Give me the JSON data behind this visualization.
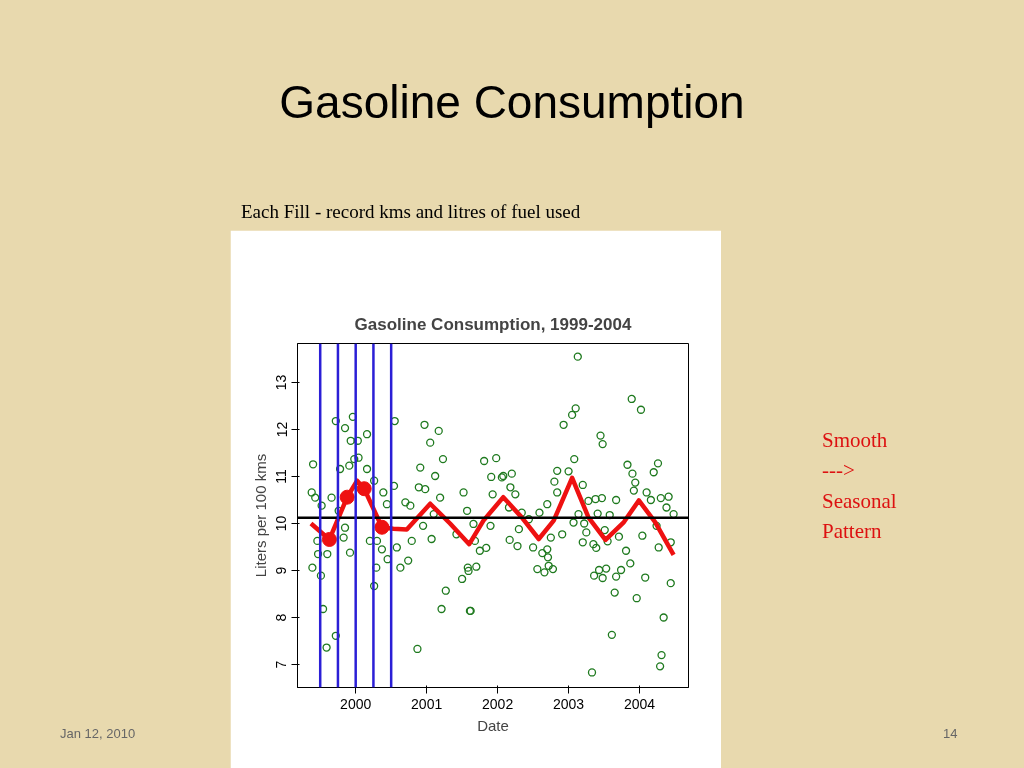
{
  "chart_data": {
    "type": "scatter",
    "title": "Gasoline Consumption, 1999-2004",
    "xlabel": "Date",
    "ylabel": "Liters per 100 kms",
    "annotations": [
      "Gasoline Consumption",
      "Each Fill - record kms and litres of fuel used",
      "Smooth\n--->\nSeasonal\nPattern",
      "Jan 12, 2010",
      "14"
    ],
    "xlim": [
      1999.18,
      2004.69
    ],
    "ylim": [
      6.51,
      13.83
    ],
    "xticks": [
      2000,
      2001,
      2002,
      2003,
      2004
    ],
    "yticks": [
      7,
      8,
      9,
      10,
      11,
      12,
      13
    ],
    "grid": false,
    "marker": "circle",
    "series": [
      {
        "color": "#1f7a1f",
        "x": [
          1999.4,
          1999.38,
          1999.43,
          1999.39,
          1999.46,
          1999.51,
          1999.54,
          1999.59,
          1999.52,
          1999.47,
          1999.6,
          1999.66,
          1999.72,
          1999.72,
          1999.76,
          1999.78,
          1999.85,
          1999.83,
          1999.91,
          1999.93,
          1999.96,
          1999.98,
          2000.03,
          2000.04,
          1999.92,
          1999.85,
          2000.16,
          2000.16,
          2000.2,
          2000.26,
          2000.29,
          2000.3,
          2000.26,
          2000.37,
          2000.39,
          2000.44,
          2000.45,
          2000.55,
          2000.54,
          2000.58,
          2000.63,
          2000.7,
          2000.77,
          2000.79,
          2000.74,
          2000.87,
          2000.91,
          2000.89,
          2000.98,
          2000.95,
          2000.97,
          2001.05,
          2001.17,
          2001.12,
          2001.1,
          2001.07,
          2001.23,
          2001.19,
          2001.27,
          2001.21,
          2001.42,
          2001.52,
          2001.59,
          2001.62,
          2001.57,
          2001.68,
          2001.5,
          2001.61,
          2001.58,
          2001.7,
          2001.75,
          2001.84,
          2001.66,
          2001.81,
          2001.98,
          2001.91,
          2001.93,
          2001.9,
          2002.06,
          2002.08,
          2002.2,
          2002.18,
          2002.25,
          2002.16,
          2002.34,
          2002.44,
          2002.3,
          2002.17,
          2002.28,
          2002.5,
          2002.63,
          2002.7,
          2002.71,
          2002.56,
          2002.66,
          2002.78,
          2002.72,
          2002.59,
          2002.7,
          2002.75,
          2002.84,
          2002.8,
          2002.84,
          2002.91,
          2002.93,
          2003.05,
          2003.1,
          2003.13,
          2003.08,
          2003.0,
          2003.07,
          2003.2,
          2003.14,
          2003.22,
          2003.25,
          2003.2,
          2003.28,
          2003.38,
          2003.35,
          2003.39,
          2003.33,
          2003.45,
          2003.48,
          2003.47,
          2003.41,
          2003.51,
          2003.55,
          2003.43,
          2003.36,
          2003.53,
          2003.48,
          2003.58,
          2003.67,
          2003.71,
          2003.74,
          2003.67,
          2003.65,
          2003.61,
          2003.81,
          2003.87,
          2003.83,
          2003.9,
          2003.94,
          2003.92,
          2004.04,
          2004.08,
          2003.96,
          2003.89,
          2004.02,
          2004.1,
          2004.16,
          2004.27,
          2004.24,
          2004.2,
          2004.26,
          2004.3,
          2004.38,
          2004.41,
          2004.48,
          2004.44,
          2004.44,
          2004.34,
          2004.31,
          2004.29
        ],
        "values": [
          11.26,
          10.66,
          10.55,
          9.06,
          9.63,
          8.89,
          8.18,
          7.36,
          10.38,
          9.35,
          9.35,
          10.55,
          12.18,
          7.61,
          10.27,
          11.16,
          12.03,
          9.7,
          11.23,
          11.76,
          12.27,
          11.37,
          11.76,
          11.4,
          9.38,
          9.91,
          11.9,
          11.16,
          9.63,
          8.67,
          9.06,
          9.63,
          10.91,
          9.45,
          10.66,
          10.41,
          9.24,
          12.18,
          10.8,
          9.49,
          9.06,
          10.45,
          10.38,
          9.63,
          9.21,
          7.33,
          11.19,
          10.77,
          10.73,
          9.95,
          12.1,
          11.72,
          11.97,
          11.01,
          10.2,
          9.67,
          11.37,
          10.55,
          8.57,
          8.18,
          9.77,
          10.66,
          8.99,
          8.14,
          10.27,
          9.63,
          8.82,
          8.14,
          9.06,
          9.08,
          9.42,
          9.48,
          9.99,
          11.33,
          11.39,
          10.99,
          10.62,
          9.95,
          10.98,
          11.01,
          11.06,
          10.77,
          10.62,
          10.34,
          10.23,
          10.09,
          9.88,
          9.65,
          9.52,
          9.49,
          9.37,
          9.45,
          9.28,
          9.03,
          8.96,
          9.03,
          9.1,
          10.23,
          10.41,
          9.7,
          11.12,
          10.89,
          10.66,
          9.77,
          12.1,
          12.31,
          12.45,
          13.55,
          11.37,
          11.11,
          10.02,
          10.82,
          10.2,
          10.0,
          9.81,
          9.6,
          10.48,
          10.52,
          9.56,
          9.48,
          6.83,
          11.87,
          11.69,
          10.54,
          10.21,
          9.86,
          9.62,
          9.01,
          8.89,
          9.04,
          8.84,
          10.18,
          10.5,
          9.72,
          9.01,
          8.87,
          8.53,
          7.63,
          9.42,
          9.15,
          11.25,
          11.06,
          10.87,
          10.7,
          9.74,
          8.85,
          8.41,
          12.65,
          12.42,
          10.66,
          10.5,
          9.49,
          9.95,
          11.09,
          11.28,
          10.54,
          10.34,
          10.57,
          10.2,
          9.6,
          8.73,
          8.0,
          7.2,
          6.96
        ]
      },
      {
        "type": "line",
        "color": "#ee1111",
        "marker": "none",
        "x": [
          1999.37,
          1999.63,
          1999.88,
          2000.02,
          2000.12,
          2000.37,
          2000.53,
          2000.72,
          2001.05,
          2001.33,
          2001.6,
          2001.8,
          2002.08,
          2002.34,
          2002.58,
          2002.79,
          2003.05,
          2003.28,
          2003.52,
          2003.78,
          2003.99,
          2004.22,
          2004.48
        ],
        "values": [
          10.0,
          9.66,
          10.56,
          10.91,
          10.74,
          9.92,
          9.89,
          9.87,
          10.42,
          10.0,
          9.56,
          10.06,
          10.56,
          10.13,
          9.67,
          10.06,
          10.97,
          10.13,
          9.65,
          10.03,
          10.49,
          10.03,
          9.33
        ]
      },
      {
        "type": "bubble",
        "color": "#ee1111",
        "x": [
          1999.63,
          1999.88,
          2000.12,
          2000.37
        ],
        "values": [
          9.66,
          10.56,
          10.74,
          9.92
        ],
        "sizes": [
          1,
          1,
          1,
          1
        ]
      }
    ],
    "ref_lines": [
      {
        "axis": "y",
        "value": 10.12,
        "color": "#000000"
      },
      {
        "axis": "x",
        "value": 1999.5,
        "color": "#2b1fd6"
      },
      {
        "axis": "x",
        "value": 1999.75,
        "color": "#2b1fd6"
      },
      {
        "axis": "x",
        "value": 2000,
        "color": "#2b1fd6"
      },
      {
        "axis": "x",
        "value": 2000.25,
        "color": "#2b1fd6"
      },
      {
        "axis": "x",
        "value": 2000.5,
        "color": "#2b1fd6"
      }
    ]
  }
}
